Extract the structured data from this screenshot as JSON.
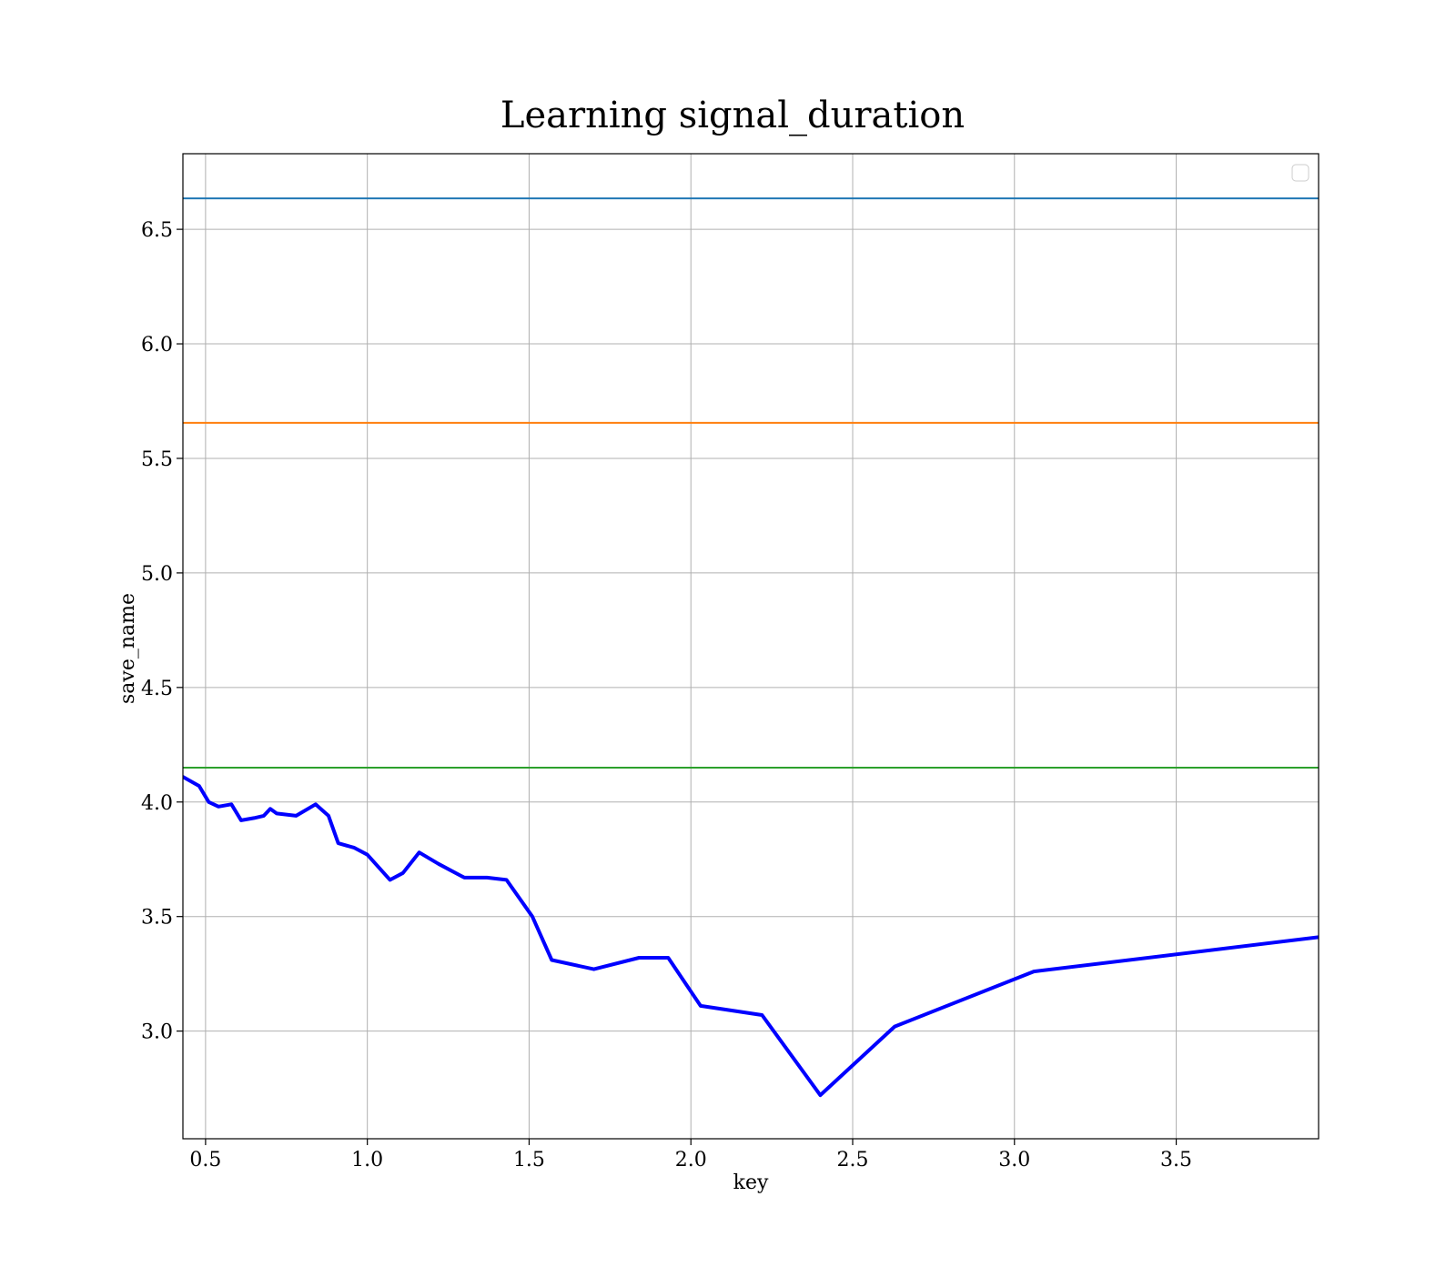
{
  "chart_data": {
    "type": "line",
    "title": "Learning signal_duration",
    "xlabel": "key",
    "ylabel": "save_name",
    "xlim": [
      0.43,
      3.94
    ],
    "ylim": [
      2.53,
      6.83
    ],
    "grid": true,
    "legend": {
      "placement": "top-right",
      "entries": []
    },
    "x_ticks": [
      0.5,
      1.0,
      1.5,
      2.0,
      2.5,
      3.0,
      3.5
    ],
    "x_tick_labels": [
      "0.5",
      "1.0",
      "1.5",
      "2.0",
      "2.5",
      "3.0",
      "3.5"
    ],
    "y_ticks": [
      3.0,
      3.5,
      4.0,
      4.5,
      5.0,
      5.5,
      6.0,
      6.5
    ],
    "y_tick_labels": [
      "3.0",
      "3.5",
      "4.0",
      "4.5",
      "5.0",
      "5.5",
      "6.0",
      "6.5"
    ],
    "hlines": [
      {
        "y": 6.635,
        "color": "#1f77b4"
      },
      {
        "y": 5.655,
        "color": "#ff7f0e"
      },
      {
        "y": 4.15,
        "color": "#2ca02c"
      }
    ],
    "series": [
      {
        "color": "#0000ff",
        "x": [
          0.43,
          0.48,
          0.51,
          0.54,
          0.58,
          0.61,
          0.65,
          0.68,
          0.7,
          0.72,
          0.78,
          0.84,
          0.88,
          0.91,
          0.96,
          1.0,
          1.07,
          1.11,
          1.16,
          1.22,
          1.3,
          1.37,
          1.43,
          1.51,
          1.57,
          1.7,
          1.84,
          1.93,
          2.03,
          2.22,
          2.4,
          2.63,
          3.06,
          3.94
        ],
        "y": [
          4.11,
          4.07,
          4.0,
          3.98,
          3.99,
          3.92,
          3.93,
          3.94,
          3.97,
          3.95,
          3.94,
          3.99,
          3.94,
          3.82,
          3.8,
          3.77,
          3.66,
          3.69,
          3.78,
          3.73,
          3.67,
          3.67,
          3.66,
          3.5,
          3.31,
          3.27,
          3.32,
          3.32,
          3.11,
          3.07,
          2.72,
          3.02,
          3.26,
          3.41
        ]
      }
    ]
  }
}
